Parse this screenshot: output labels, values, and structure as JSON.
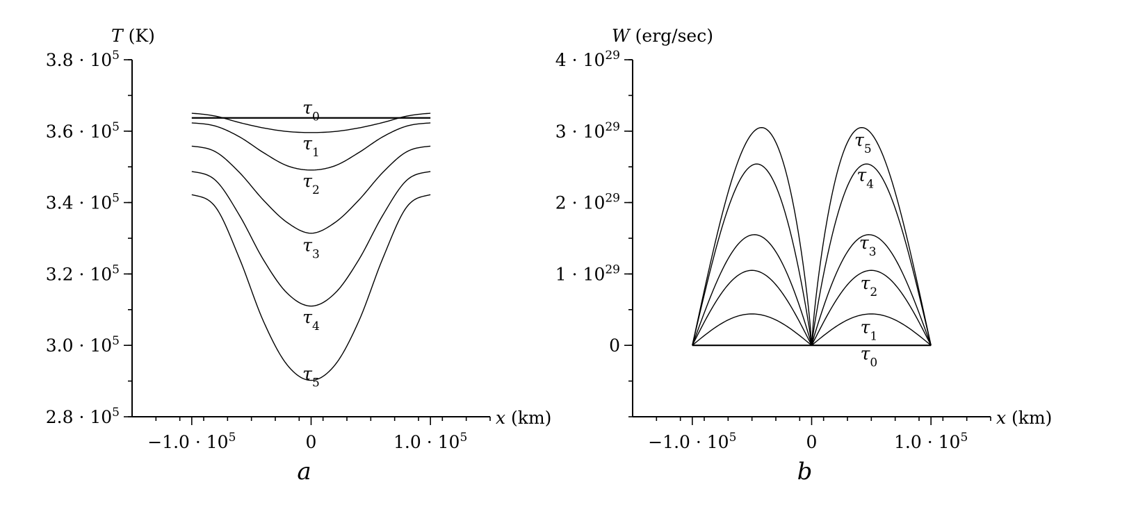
{
  "chart_data": [
    {
      "type": "line",
      "panel_label": "a",
      "y_axis": {
        "var": "T",
        "unit": "(K)"
      },
      "x_axis": {
        "var": "x",
        "unit": "(km)"
      },
      "xlim": [
        -150000,
        150000
      ],
      "ylim": [
        280000,
        380000
      ],
      "grid": false,
      "y_ticks": [
        {
          "v": 280000,
          "m": "2.8",
          "e": "5"
        },
        {
          "v": 300000,
          "m": "3.0",
          "e": "5"
        },
        {
          "v": 320000,
          "m": "3.2",
          "e": "5"
        },
        {
          "v": 340000,
          "m": "3.4",
          "e": "5"
        },
        {
          "v": 360000,
          "m": "3.6",
          "e": "5"
        },
        {
          "v": 380000,
          "m": "3.8",
          "e": "5"
        }
      ],
      "x_ticks": [
        {
          "v": -100000,
          "m": "−1.0",
          "e": "5"
        },
        {
          "v": 0,
          "m": "0",
          "e": ""
        },
        {
          "v": 100000,
          "m": "1.0",
          "e": "5"
        }
      ],
      "series": [
        {
          "name": "τ0",
          "sub": "0",
          "x": [
            -100000,
            0,
            100000
          ],
          "y": [
            363700,
            363700,
            363700
          ],
          "label_at": [
            0,
            366500
          ]
        },
        {
          "name": "τ0",
          "sub": "0",
          "x": [
            -100000,
            -80000,
            -60000,
            -40000,
            -20000,
            0,
            20000,
            40000,
            60000,
            80000,
            100000
          ],
          "y": [
            365000,
            364200,
            362400,
            360900,
            359900,
            359600,
            359900,
            360900,
            362400,
            364200,
            365000
          ],
          "label_at": null
        },
        {
          "name": "τ1",
          "sub": "1",
          "x": [
            -100000,
            -80000,
            -60000,
            -40000,
            -20000,
            0,
            20000,
            40000,
            60000,
            80000,
            100000
          ],
          "y": [
            362300,
            361400,
            358400,
            354000,
            350300,
            349100,
            350300,
            354000,
            358400,
            361400,
            362300
          ],
          "label_at": [
            0,
            356500
          ]
        },
        {
          "name": "τ2",
          "sub": "2",
          "x": [
            -100000,
            -80000,
            -60000,
            -40000,
            -20000,
            0,
            20000,
            40000,
            60000,
            80000,
            100000
          ],
          "y": [
            355800,
            354200,
            348400,
            340700,
            334400,
            331400,
            334400,
            340700,
            348400,
            354200,
            355800
          ],
          "label_at": [
            0,
            346000
          ]
        },
        {
          "name": "τ3",
          "sub": "3",
          "x": [
            -100000,
            -80000,
            -60000,
            -40000,
            -20000,
            0,
            20000,
            40000,
            60000,
            80000,
            100000
          ],
          "y": [
            348700,
            346200,
            336400,
            324000,
            314600,
            311000,
            314600,
            324000,
            336400,
            346200,
            348700
          ],
          "label_at": [
            0,
            328000
          ]
        },
        {
          "name": "τ4",
          "sub": "4",
          "x": [
            -100000,
            -80000,
            -60000,
            -40000,
            -20000,
            0,
            20000,
            40000,
            60000,
            80000,
            100000
          ],
          "y": [
            342200,
            338700,
            324300,
            306800,
            294500,
            290200,
            294500,
            306800,
            324300,
            338700,
            342200
          ],
          "label_at": [
            0,
            307800
          ]
        },
        {
          "name": "τ5",
          "sub": "5",
          "x": [],
          "y": [],
          "label_at": [
            0,
            292000
          ]
        }
      ]
    },
    {
      "type": "line",
      "panel_label": "b",
      "y_axis": {
        "var": "W",
        "unit": "(erg/sec)"
      },
      "x_axis": {
        "var": "x",
        "unit": "(km)"
      },
      "xlim": [
        -150000,
        150000
      ],
      "ylim": [
        -1e+29,
        4e+29
      ],
      "grid": false,
      "y_ticks": [
        {
          "v": 0,
          "m": "0",
          "e": ""
        },
        {
          "v": 1e+29,
          "m": "1",
          "e": "29"
        },
        {
          "v": 2e+29,
          "m": "2",
          "e": "29"
        },
        {
          "v": 3e+29,
          "m": "3",
          "e": "29"
        },
        {
          "v": 4e+29,
          "m": "4",
          "e": "29"
        }
      ],
      "x_ticks": [
        {
          "v": -100000,
          "m": "−1.0",
          "e": "5"
        },
        {
          "v": 0,
          "m": "0",
          "e": ""
        },
        {
          "v": 100000,
          "m": "1.0",
          "e": "5"
        }
      ],
      "series": [
        {
          "name": "τ0",
          "sub": "0",
          "peak": 0,
          "peak_at": 50000,
          "label_at": [
            48000,
            -1.2e+28
          ]
        },
        {
          "name": "τ1",
          "sub": "1",
          "peak": 4.4e+28,
          "peak_at": 50000,
          "label_at": [
            48000,
            2.5e+28
          ]
        },
        {
          "name": "τ2",
          "sub": "2",
          "peak": 1.05e+29,
          "peak_at": 50000,
          "label_at": [
            48000,
            8.7e+28
          ]
        },
        {
          "name": "τ3",
          "sub": "3",
          "peak": 1.55e+29,
          "peak_at": 48000,
          "label_at": [
            47000,
            1.43e+29
          ]
        },
        {
          "name": "τ4",
          "sub": "4",
          "peak": 2.54e+29,
          "peak_at": 46000,
          "label_at": [
            45000,
            2.38e+29
          ]
        },
        {
          "name": "τ5",
          "sub": "5",
          "peak": 3.05e+29,
          "peak_at": 42000,
          "label_at": [
            43000,
            2.87e+29
          ]
        }
      ]
    }
  ]
}
